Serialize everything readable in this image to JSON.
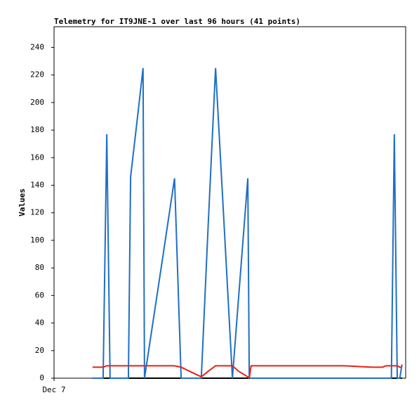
{
  "chart_data": {
    "type": "line",
    "title": "Telemetry for IT9JNE-1 over last 96 hours (41 points)",
    "y_label": "Values",
    "x": [
      10.5,
      12.1,
      13.4,
      14.4,
      15.3,
      16.9,
      18.8,
      20.3,
      20.9,
      22.6,
      24.3,
      24.7,
      26.4,
      29.3,
      32.9,
      34.7,
      37.0,
      40.2,
      42.1,
      44.1,
      46.6,
      48.7,
      50.4,
      52.9,
      53.3,
      53.8,
      58.0,
      61.9,
      65.7,
      69.5,
      73.4,
      79.1,
      83.0,
      86.8,
      89.7,
      90.6,
      92.1,
      92.9,
      93.7,
      94.4,
      95.0
    ],
    "series": [
      {
        "color": "#000000",
        "values": [
          0,
          0,
          0,
          0,
          0,
          0,
          0,
          0,
          0,
          0,
          0,
          0,
          0,
          0,
          0,
          0,
          0,
          0,
          0,
          0,
          0,
          0,
          0,
          0,
          0,
          0,
          0,
          0,
          0,
          0,
          0,
          0,
          0,
          0,
          0,
          0,
          0,
          0,
          0,
          0,
          0
        ]
      },
      {
        "color": "#1f6fc5",
        "values": [
          0,
          0,
          0,
          177,
          0,
          0,
          0,
          0,
          146,
          185,
          225,
          0,
          30,
          81,
          145,
          0,
          0,
          0,
          112,
          225,
          103,
          0,
          59,
          145,
          0,
          0,
          0,
          0,
          0,
          0,
          0,
          0,
          0,
          0,
          0,
          0,
          0,
          177,
          0,
          0,
          10
        ]
      },
      {
        "color": "#e8201a",
        "values": [
          8,
          8,
          8,
          9,
          9,
          9,
          9,
          9,
          9,
          9,
          9,
          9,
          9,
          9,
          9,
          8,
          5,
          1,
          5,
          9,
          9,
          9,
          5,
          1,
          0,
          9,
          9,
          9,
          9,
          9,
          9,
          9,
          8.5,
          8,
          8,
          9,
          9,
          9,
          9,
          8,
          8
        ]
      }
    ],
    "xlim": [
      0,
      96
    ],
    "xticks": [
      {
        "value": 0,
        "label": "Dec 7"
      }
    ],
    "ylim": [
      0,
      255
    ],
    "yticks": [
      0,
      20,
      40,
      60,
      80,
      100,
      120,
      140,
      160,
      180,
      200,
      220,
      240
    ]
  }
}
